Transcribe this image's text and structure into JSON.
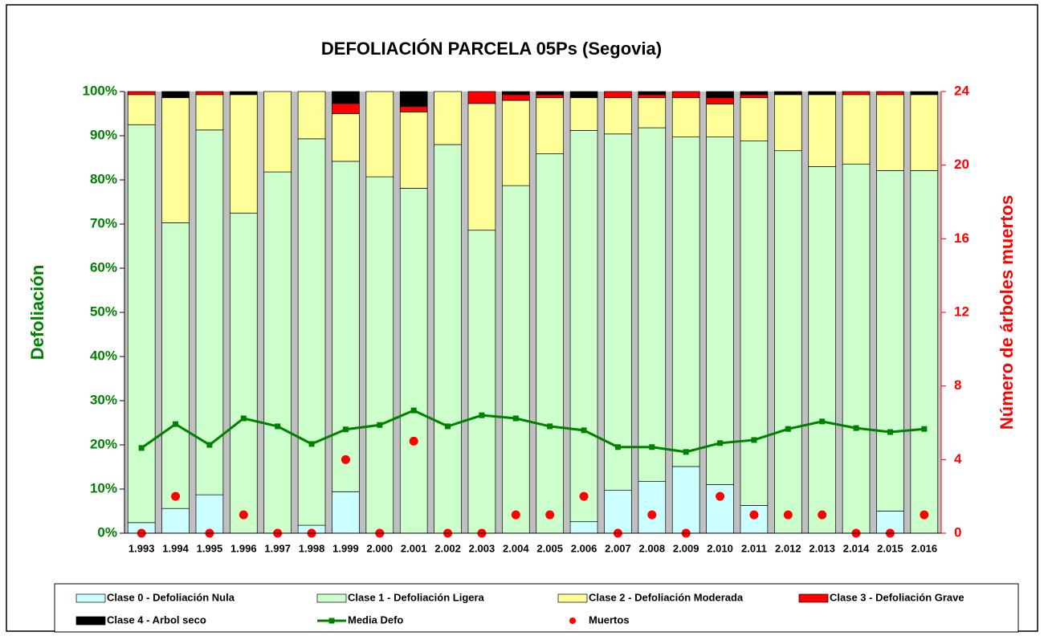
{
  "chart_data": {
    "type": "bar",
    "stacked": true,
    "title": "DEFOLIACIÓN PARCELA 05Ps (Segovia)",
    "y_label": "Defoliación",
    "y2_label": "Número de árboles muertos",
    "categories": [
      "1.993",
      "1.994",
      "1.995",
      "1.996",
      "1.997",
      "1.998",
      "1.999",
      "2.000",
      "2.001",
      "2.002",
      "2.003",
      "2.004",
      "2.005",
      "2.006",
      "2.007",
      "2.008",
      "2.009",
      "2.010",
      "2.011",
      "2.012",
      "2.013",
      "2.014",
      "2.015",
      "2.016"
    ],
    "ylim": [
      0,
      100
    ],
    "yticks": [
      {
        "value": 0,
        "label": "0%"
      },
      {
        "value": 10,
        "label": "10%"
      },
      {
        "value": 20,
        "label": "20%"
      },
      {
        "value": 30,
        "label": "30%"
      },
      {
        "value": 40,
        "label": "40%"
      },
      {
        "value": 50,
        "label": "50%"
      },
      {
        "value": 60,
        "label": "60%"
      },
      {
        "value": 70,
        "label": "70%"
      },
      {
        "value": 80,
        "label": "80%"
      },
      {
        "value": 90,
        "label": "90%"
      },
      {
        "value": 100,
        "label": "100%"
      }
    ],
    "y2lim": [
      0,
      24
    ],
    "y2ticks": [
      0,
      4,
      8,
      12,
      16,
      20,
      24
    ],
    "grid": false,
    "series": [
      {
        "name": "Clase 0 - Defoliación Nula",
        "type": "bar",
        "color": "#ccffff",
        "values": [
          2.4,
          5.6,
          8.7,
          0,
          0,
          1.8,
          9.4,
          0,
          0,
          0,
          0,
          0,
          0,
          2.6,
          9.7,
          11.7,
          15.1,
          11.0,
          6.3,
          0,
          0,
          0,
          5.0,
          0
        ]
      },
      {
        "name": "Clase 1 - Defoliación Ligera",
        "type": "bar",
        "color": "#ccffcc",
        "values": [
          90.1,
          64.7,
          82.6,
          72.5,
          81.8,
          87.5,
          74.8,
          80.7,
          78.1,
          88.0,
          68.6,
          78.7,
          85.9,
          88.6,
          80.7,
          80.1,
          74.6,
          78.7,
          82.5,
          86.6,
          83.0,
          83.6,
          77.1,
          82.1
        ]
      },
      {
        "name": "Clase 2 - Defoliación Moderada",
        "type": "bar",
        "color": "#ffff99",
        "values": [
          6.8,
          28.3,
          8.0,
          26.8,
          18.2,
          10.7,
          10.8,
          19.3,
          17.3,
          12.0,
          28.7,
          19.3,
          12.7,
          7.4,
          8.2,
          6.8,
          8.9,
          7.5,
          9.8,
          12.7,
          16.3,
          15.7,
          17.2,
          17.2
        ]
      },
      {
        "name": "Clase 3 - Defoliación Grave",
        "type": "bar",
        "color": "#ff0000",
        "values": [
          0.7,
          0,
          0.7,
          0,
          0,
          0,
          2.3,
          0,
          1.2,
          0,
          2.7,
          1.3,
          0.7,
          0,
          1.4,
          0.7,
          1.4,
          1.4,
          0.7,
          0,
          0,
          0.7,
          0.7,
          0
        ]
      },
      {
        "name": "Clase 4 - Arbol seco",
        "type": "bar",
        "color": "#000000",
        "values": [
          0,
          1.4,
          0,
          0.7,
          0,
          0,
          2.7,
          0,
          3.4,
          0,
          0,
          0.7,
          0.7,
          1.4,
          0,
          0.7,
          0,
          1.4,
          0.7,
          0.7,
          0.7,
          0,
          0,
          0.7
        ]
      },
      {
        "name": "Media Defo",
        "type": "line",
        "color": "#008000",
        "values": [
          19.3,
          24.7,
          20.0,
          26.0,
          24.2,
          20.2,
          23.5,
          24.5,
          27.8,
          24.2,
          26.7,
          26.0,
          24.2,
          23.3,
          19.5,
          19.5,
          18.4,
          20.4,
          21.1,
          23.6,
          25.3,
          23.8,
          22.9,
          23.6
        ]
      },
      {
        "name": "Muertos",
        "type": "scatter",
        "axis": "y2",
        "color": "#ff0000",
        "values": [
          0,
          2,
          0,
          1,
          0,
          0,
          4,
          0,
          5,
          0,
          0,
          1,
          1,
          2,
          0,
          1,
          0,
          2,
          1,
          1,
          1,
          0,
          0,
          1
        ]
      }
    ]
  }
}
